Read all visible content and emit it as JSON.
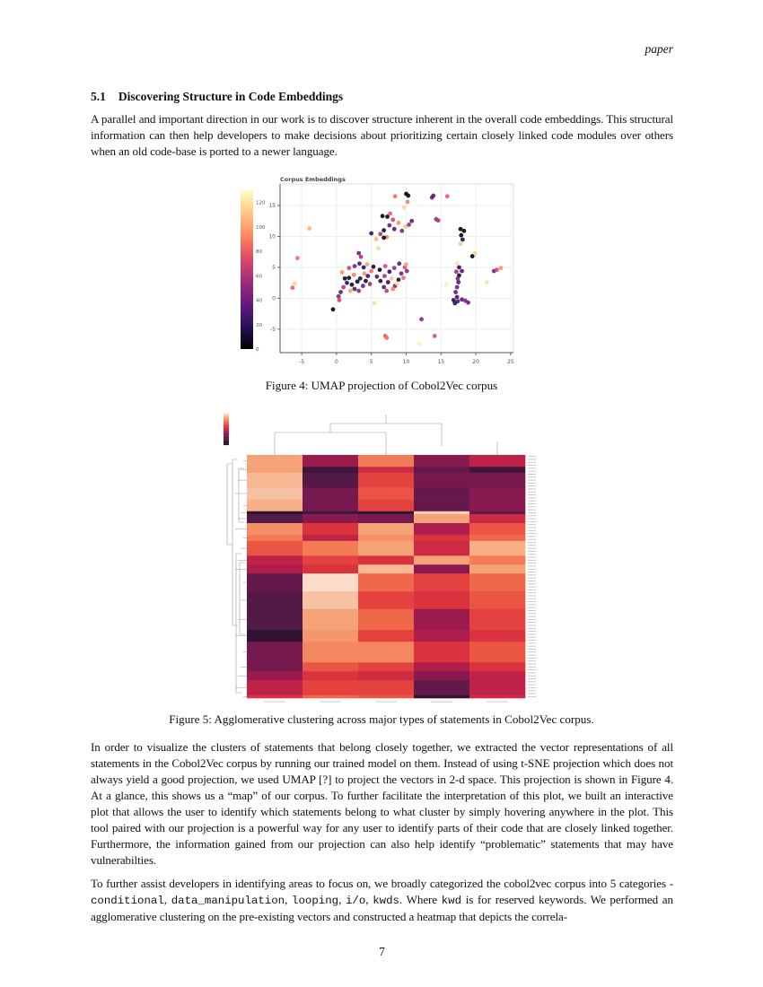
{
  "running_head": "paper",
  "section": {
    "number": "5.1",
    "title": "Discovering Structure in Code Embeddings"
  },
  "para1": "A parallel and important direction in our work is to discover structure inherent in the overall code embeddings. This structural information can then help developers to make decisions about prioritizing certain closely linked code modules over others when an old code-base is ported to a newer language.",
  "figure4": {
    "caption": "Figure 4: UMAP projection of Cobol2Vec corpus",
    "chart_data": {
      "type": "scatter",
      "title": "Corpus Embeddings",
      "xlim": [
        -8.1,
        25.4
      ],
      "ylim": [
        -8.8,
        18.5
      ],
      "xticks": [
        -5,
        0,
        5,
        10,
        15,
        20,
        25
      ],
      "yticks": [
        -5,
        0,
        5,
        10,
        15
      ],
      "grid": true,
      "colorbar": {
        "range": [
          0,
          130
        ],
        "ticks": [
          0,
          20,
          40,
          60,
          80,
          100,
          120
        ],
        "colormap": "magma"
      },
      "points": [
        [
          -0.5,
          -1.8,
          2
        ],
        [
          -3.9,
          11.3,
          105
        ],
        [
          -5.6,
          6.5,
          85
        ],
        [
          -6.3,
          1.7,
          80
        ],
        [
          -6,
          2.4,
          115
        ],
        [
          0.3,
          0.3,
          45
        ],
        [
          0.6,
          1,
          35
        ],
        [
          1,
          1.8,
          60
        ],
        [
          1.5,
          2.5,
          20
        ],
        [
          1.8,
          3.3,
          10
        ],
        [
          2.2,
          2.2,
          8
        ],
        [
          2.6,
          1.5,
          30
        ],
        [
          3,
          2.7,
          5
        ],
        [
          3.4,
          3.2,
          15
        ],
        [
          3.8,
          2,
          40
        ],
        [
          4.2,
          2.8,
          10
        ],
        [
          4.5,
          3.6,
          25
        ],
        [
          4.8,
          2.3,
          55
        ],
        [
          2.5,
          3.8,
          90
        ],
        [
          3.2,
          1.2,
          50
        ],
        [
          1.2,
          3.2,
          5
        ],
        [
          0.8,
          4.2,
          95
        ],
        [
          1.8,
          4.9,
          70
        ],
        [
          2.6,
          5.2,
          45
        ],
        [
          3.3,
          5.6,
          30
        ],
        [
          3.9,
          5,
          20
        ],
        [
          4.4,
          5.5,
          100
        ],
        [
          3.5,
          6.7,
          60
        ],
        [
          3.2,
          7.3,
          40
        ],
        [
          5,
          4.4,
          85
        ],
        [
          5.3,
          5.1,
          10
        ],
        [
          0.4,
          -0.3,
          70
        ],
        [
          2,
          1.2,
          100
        ],
        [
          4,
          4,
          95
        ],
        [
          5.8,
          3.5,
          30
        ],
        [
          6.3,
          2.8,
          15
        ],
        [
          6.9,
          3.6,
          60
        ],
        [
          7.4,
          2.6,
          20
        ],
        [
          7.9,
          3.2,
          110
        ],
        [
          8.4,
          2,
          45
        ],
        [
          8.9,
          3,
          10
        ],
        [
          9.3,
          4,
          40
        ],
        [
          9.8,
          5,
          75
        ],
        [
          10,
          5.5,
          100
        ],
        [
          9,
          5.6,
          30
        ],
        [
          8.3,
          4.9,
          55
        ],
        [
          7.6,
          4.3,
          20
        ],
        [
          6.8,
          1.8,
          35
        ],
        [
          7.2,
          1.2,
          65
        ],
        [
          8.1,
          1.5,
          90
        ],
        [
          6.2,
          4.6,
          5
        ],
        [
          9.6,
          3.3,
          85
        ],
        [
          10.1,
          4.4,
          50
        ],
        [
          8.7,
          2.4,
          120
        ],
        [
          7,
          5.2,
          75
        ],
        [
          5,
          10.5,
          20
        ],
        [
          5.7,
          9.6,
          105
        ],
        [
          6.3,
          10.4,
          60
        ],
        [
          6.8,
          11,
          10
        ],
        [
          7.2,
          9.9,
          90
        ],
        [
          7.6,
          11.8,
          40
        ],
        [
          8.1,
          12.7,
          70
        ],
        [
          8.3,
          11.2,
          30
        ],
        [
          8.9,
          12.2,
          95
        ],
        [
          9.4,
          10.9,
          45
        ],
        [
          9.9,
          11.6,
          110
        ],
        [
          10.4,
          11.9,
          55
        ],
        [
          10.8,
          12.5,
          35
        ],
        [
          7.3,
          13.2,
          5
        ],
        [
          6.8,
          9.8,
          3
        ],
        [
          6,
          8.1,
          115
        ],
        [
          7.7,
          13.7,
          80
        ],
        [
          6.6,
          13.3,
          2
        ],
        [
          10,
          16.9,
          2
        ],
        [
          10.3,
          16.6,
          5
        ],
        [
          8.4,
          16.5,
          85
        ],
        [
          10.2,
          15.6,
          90
        ],
        [
          9.7,
          14.7,
          115
        ],
        [
          13.7,
          16.3,
          40
        ],
        [
          13.9,
          16.6,
          35
        ],
        [
          15.9,
          16.5,
          80
        ],
        [
          14.3,
          12.8,
          55
        ],
        [
          14.6,
          12.6,
          60
        ],
        [
          17.8,
          11.2,
          2
        ],
        [
          18.3,
          10.9,
          3
        ],
        [
          17.9,
          10.2,
          2
        ],
        [
          18.1,
          9.5,
          15
        ],
        [
          17.8,
          8.8,
          110
        ],
        [
          17.3,
          5.6,
          120
        ],
        [
          17.6,
          5,
          20
        ],
        [
          17.2,
          4.3,
          55
        ],
        [
          18,
          4.4,
          30
        ],
        [
          17.6,
          3.7,
          10
        ],
        [
          17.4,
          3.2,
          45
        ],
        [
          17.5,
          2.6,
          30
        ],
        [
          17.3,
          1.8,
          40
        ],
        [
          17.1,
          1,
          35
        ],
        [
          17.3,
          0.2,
          25
        ],
        [
          16.8,
          -0.3,
          15
        ],
        [
          17.4,
          -0.5,
          30
        ],
        [
          18,
          -0.2,
          35
        ],
        [
          18.5,
          -0.4,
          45
        ],
        [
          18.9,
          -0.7,
          40
        ],
        [
          17,
          -0.8,
          20
        ],
        [
          19.5,
          6.8,
          2
        ],
        [
          19.9,
          7.3,
          115
        ],
        [
          22.6,
          4.4,
          40
        ],
        [
          23,
          4.6,
          70
        ],
        [
          23.6,
          4.9,
          95
        ],
        [
          21.6,
          2.6,
          120
        ],
        [
          15.7,
          2.2,
          125
        ],
        [
          5.4,
          -0.8,
          118
        ],
        [
          12.2,
          -3.4,
          50
        ],
        [
          7,
          -6.1,
          80
        ],
        [
          7.2,
          -6.4,
          85
        ],
        [
          14.1,
          -6.1,
          75
        ],
        [
          11.9,
          -7.4,
          125
        ]
      ]
    }
  },
  "figure5": {
    "caption": "Figure 5: Agglomerative clustering across major types of statements in Cobol2Vec corpus.",
    "chart_data": {
      "type": "heatmap",
      "colormap": "rocket",
      "columns": 5,
      "bands": [
        {
          "rows": 4,
          "values": [
            0.85,
            0.35,
            0.75,
            0.3,
            0.45
          ]
        },
        {
          "rows": 2,
          "values": [
            0.85,
            0.1,
            0.5,
            0.2,
            0.1
          ]
        },
        {
          "rows": 5,
          "values": [
            0.9,
            0.15,
            0.6,
            0.25,
            0.25
          ]
        },
        {
          "rows": 4,
          "values": [
            0.92,
            0.25,
            0.65,
            0.2,
            0.3
          ]
        },
        {
          "rows": 4,
          "values": [
            0.88,
            0.25,
            0.6,
            0.2,
            0.3
          ]
        },
        {
          "rows": 1,
          "values": [
            0.05,
            0.1,
            0.05,
            0.95,
            0.2
          ]
        },
        {
          "rows": 3,
          "values": [
            0.15,
            0.3,
            0.25,
            0.85,
            0.5
          ]
        },
        {
          "rows": 4,
          "values": [
            0.8,
            0.55,
            0.85,
            0.4,
            0.65
          ]
        },
        {
          "rows": 2,
          "values": [
            0.75,
            0.45,
            0.8,
            0.55,
            0.7
          ]
        },
        {
          "rows": 5,
          "values": [
            0.65,
            0.75,
            0.85,
            0.5,
            0.88
          ]
        },
        {
          "rows": 3,
          "values": [
            0.45,
            0.6,
            0.55,
            0.85,
            0.75
          ]
        },
        {
          "rows": 3,
          "values": [
            0.4,
            0.55,
            0.9,
            0.3,
            0.85
          ]
        },
        {
          "rows": 6,
          "values": [
            0.2,
            0.98,
            0.7,
            0.6,
            0.7
          ]
        },
        {
          "rows": 6,
          "values": [
            0.15,
            0.92,
            0.6,
            0.55,
            0.65
          ]
        },
        {
          "rows": 7,
          "values": [
            0.15,
            0.85,
            0.7,
            0.35,
            0.6
          ]
        },
        {
          "rows": 4,
          "values": [
            0.05,
            0.82,
            0.6,
            0.4,
            0.55
          ]
        },
        {
          "rows": 7,
          "values": [
            0.25,
            0.78,
            0.78,
            0.55,
            0.65
          ]
        },
        {
          "rows": 3,
          "values": [
            0.25,
            0.65,
            0.6,
            0.4,
            0.55
          ]
        },
        {
          "rows": 3,
          "values": [
            0.35,
            0.55,
            0.5,
            0.3,
            0.45
          ]
        },
        {
          "rows": 5,
          "values": [
            0.45,
            0.6,
            0.6,
            0.2,
            0.45
          ]
        },
        {
          "rows": 1,
          "values": [
            0.55,
            0.7,
            0.65,
            0.05,
            0.5
          ]
        }
      ]
    }
  },
  "para2": "In order to visualize the clusters of statements that belong closely together, we extracted the vector representations of all statements in the Cobol2Vec corpus by running our trained model on them. Instead of using t-SNE projection which does not always yield a good projection, we used UMAP [?] to project the vectors in 2-d space. This projection is shown in Figure 4. At a glance, this shows us a “map” of our corpus. To further facilitate the interpretation of this plot, we built an interactive plot that allows the user to identify which statements belong to what cluster by simply hovering anywhere in the plot. This tool paired with our projection is a powerful way for any user to identify parts of their code that are closely linked together. Furthermore, the information gained from our projection can also help identify “problematic” statements that may have vulnerabilties.",
  "para3": {
    "t1": "To further assist developers in identifying areas to focus on, we broadly categorized the cobol2vec corpus into 5 categories - ",
    "c1": "conditional",
    "s1": ", ",
    "c2": "data_manipulation",
    "s2": ", ",
    "c3": "looping",
    "s3": ", ",
    "c4": "i/o",
    "s4": ", ",
    "c5": "kwds",
    "t2": ". Where ",
    "c6": "kwd",
    "t3": " is for reserved keywords. We performed an agglomerative clustering on the pre-existing vectors and constructed a heatmap that depicts the correla-"
  },
  "page_number": "7"
}
